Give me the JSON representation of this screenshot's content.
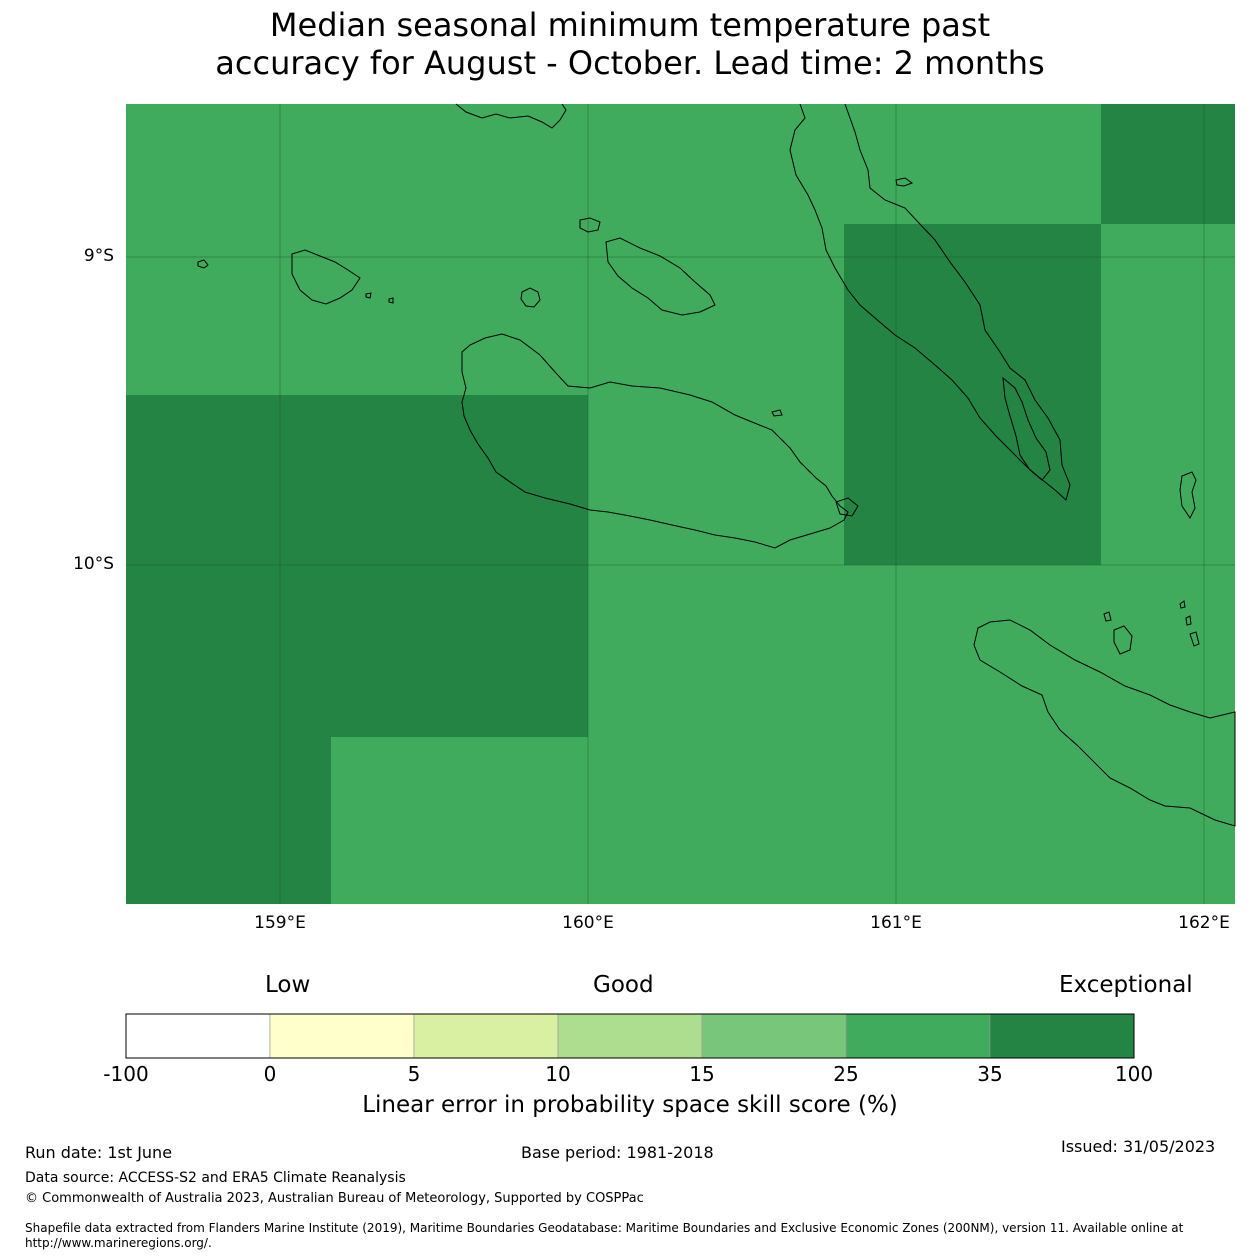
{
  "title_line1": "Median seasonal minimum temperature past",
  "title_line2": "accuracy for August - October. Lead time: 2 months",
  "map": {
    "lat_labels": [
      "9°S",
      "10°S"
    ],
    "lon_labels": [
      "159°E",
      "160°E",
      "161°E",
      "162°E"
    ],
    "colors": {
      "ocean_good": "#41ab5d",
      "exceptional": "#238443",
      "coastline": "#000000"
    }
  },
  "colorbar": {
    "category_labels": [
      "Low",
      "Good",
      "Exceptional"
    ],
    "ticks": [
      "-100",
      "0",
      "5",
      "10",
      "15",
      "25",
      "35",
      "100"
    ],
    "colors": [
      "#ffffff",
      "#ffffcc",
      "#d9f0a3",
      "#addd8e",
      "#78c679",
      "#41ab5d",
      "#238443"
    ],
    "label": "Linear error in probability space skill score (%)"
  },
  "footer": {
    "run_date": "Run date: 1st June",
    "base_period": "Base period: 1981-2018",
    "issued": "Issued: 31/05/2023",
    "data_source": "Data source: ACCESS-S2 and ERA5 Climate Reanalysis",
    "copyright": "© Commonwealth of Australia 2023, Australian Bureau of Meteorology, Supported by COSPPac",
    "shapefile_line1": "Shapefile data extracted from Flanders Marine Institute (2019), Maritime Boundaries Geodatabase: Maritime Boundaries and Exclusive Economic Zones (200NM), version 11. Available online at",
    "shapefile_line2": "http://www.marineregions.org/."
  }
}
